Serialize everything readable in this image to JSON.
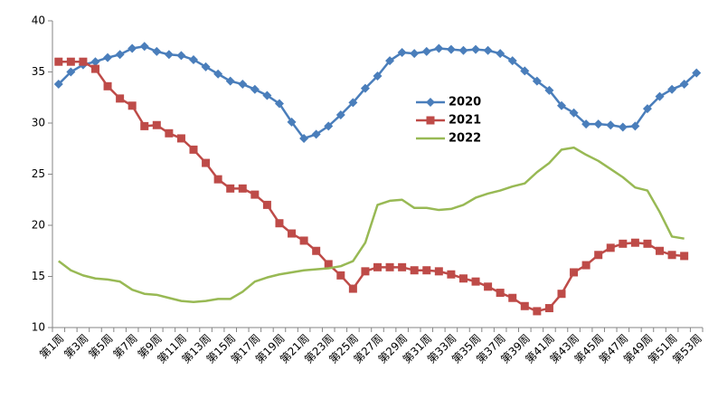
{
  "chart_data": {
    "type": "line",
    "categories": [
      "第1周",
      null,
      "第3周",
      null,
      "第5周",
      null,
      "第7周",
      null,
      "第9周",
      null,
      "第11周",
      null,
      "第13周",
      null,
      "第15周",
      null,
      "第17周",
      null,
      "第19周",
      null,
      "第21周",
      null,
      "第23周",
      null,
      "第25周",
      null,
      "第27周",
      null,
      "第29周",
      null,
      "第31周",
      null,
      "第33周",
      null,
      "第35周",
      null,
      "第37周",
      null,
      "第39周",
      null,
      "第41周",
      null,
      "第43周",
      null,
      "第45周",
      null,
      "第47周",
      null,
      "第49周",
      null,
      "第51周",
      null,
      "第53周"
    ],
    "series": [
      {
        "name": "2020",
        "color": "#4a7ebb",
        "marker": "diamond",
        "values": [
          33.8,
          35.0,
          35.7,
          36.0,
          36.4,
          36.7,
          37.3,
          37.5,
          37.0,
          36.7,
          36.6,
          36.2,
          35.5,
          34.8,
          34.1,
          33.8,
          33.3,
          32.7,
          31.9,
          30.1,
          28.5,
          28.9,
          29.7,
          30.8,
          32.0,
          33.4,
          34.6,
          36.1,
          36.9,
          36.8,
          37.0,
          37.3,
          37.2,
          37.1,
          37.2,
          37.1,
          36.8,
          36.1,
          35.1,
          34.1,
          33.2,
          31.7,
          31.0,
          29.9,
          29.9,
          29.8,
          29.6,
          29.7,
          31.4,
          32.6,
          33.3,
          33.8,
          34.9
        ]
      },
      {
        "name": "2021",
        "color": "#be4b48",
        "marker": "square",
        "values": [
          36.0,
          36.0,
          36.0,
          35.3,
          33.6,
          32.4,
          31.7,
          29.7,
          29.8,
          29.0,
          28.5,
          27.4,
          26.1,
          24.5,
          23.6,
          23.6,
          23.0,
          22.0,
          20.2,
          19.2,
          18.5,
          17.5,
          16.2,
          15.1,
          13.8,
          15.5,
          15.9,
          15.9,
          15.9,
          15.6,
          15.6,
          15.5,
          15.2,
          14.8,
          14.5,
          14.0,
          13.4,
          12.9,
          12.1,
          11.6,
          11.9,
          13.3,
          15.4,
          16.1,
          17.1,
          17.8,
          18.2,
          18.3,
          18.2,
          17.5,
          17.1,
          17.0,
          null
        ]
      },
      {
        "name": "2022",
        "color": "#98b954",
        "marker": "none",
        "values": [
          16.5,
          15.6,
          15.1,
          14.8,
          14.7,
          14.5,
          13.7,
          13.3,
          13.2,
          12.9,
          12.6,
          12.5,
          12.6,
          12.8,
          12.8,
          13.5,
          14.5,
          14.9,
          15.2,
          15.4,
          15.6,
          15.7,
          15.8,
          16.0,
          16.5,
          18.3,
          22.0,
          22.4,
          22.5,
          21.7,
          21.7,
          21.5,
          21.6,
          22.0,
          22.7,
          23.1,
          23.4,
          23.8,
          24.1,
          25.2,
          26.1,
          27.4,
          27.6,
          26.9,
          26.3,
          25.5,
          24.7,
          23.7,
          23.4,
          21.3,
          18.9,
          18.7,
          null
        ]
      }
    ],
    "ylim": [
      10,
      40
    ],
    "yticks": [
      10,
      15,
      20,
      25,
      30,
      35,
      40
    ],
    "grid": false,
    "legend": "center"
  }
}
